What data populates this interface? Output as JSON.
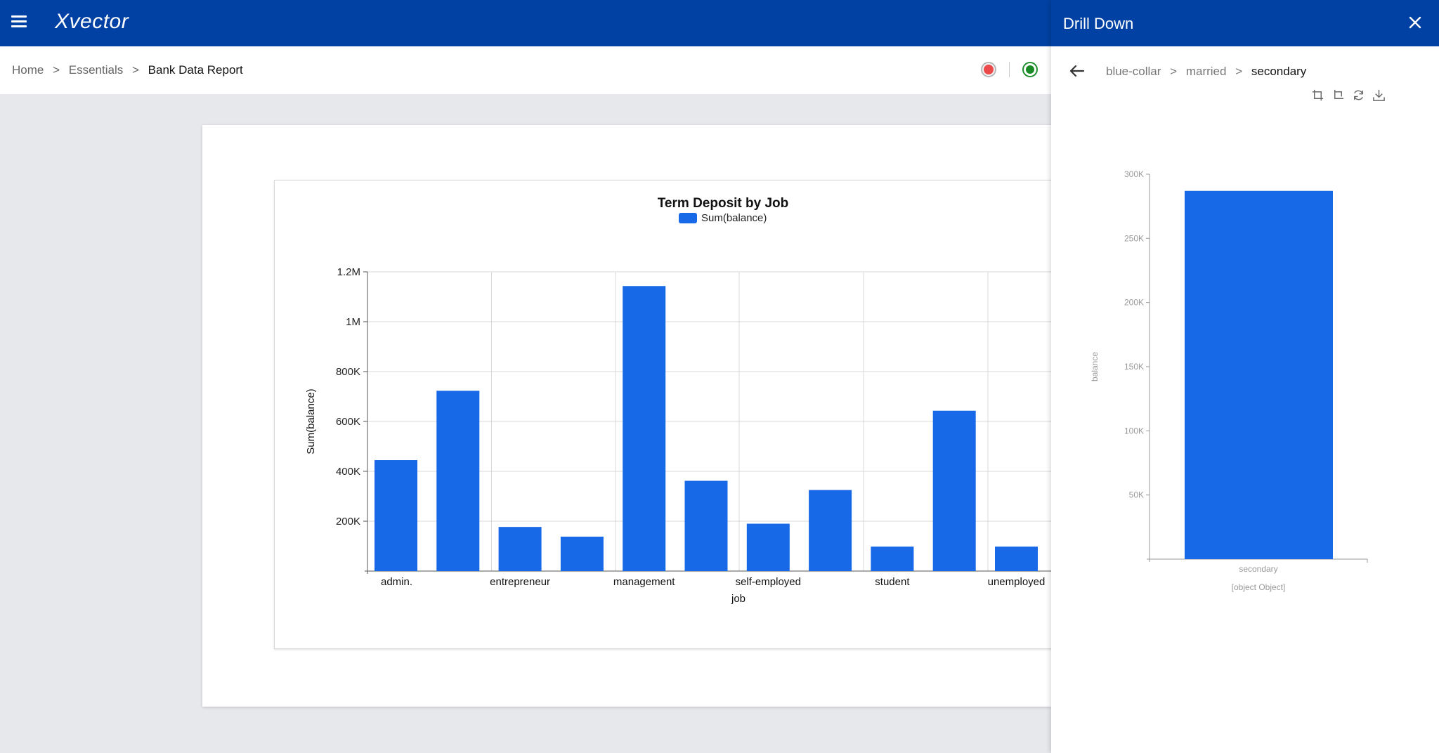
{
  "app": {
    "logo": "Xvector"
  },
  "breadcrumb": [
    "Home",
    "Essentials",
    "Bank Data Report"
  ],
  "breadcrumb_sep": ">",
  "colors": {
    "topbar": "#0041a3",
    "bar": "#1769e8",
    "stop": "#ea4a4a",
    "run": "#1a8a27"
  },
  "icons": {
    "menu": "hamburger-icon",
    "stop": "stop-circle-icon",
    "run": "running-status-icon",
    "close": "close-icon",
    "back": "arrow-left-icon"
  },
  "drawer": {
    "title": "Drill Down",
    "path": [
      "blue-collar",
      "married",
      "secondary"
    ],
    "tools": [
      "crop-icon",
      "crop-alt-icon",
      "refresh-icon",
      "download-icon"
    ]
  },
  "chart_data": [
    {
      "type": "bar",
      "title": "Term Deposit by Job",
      "legend": "Sum(balance)",
      "legend_position": "top-center",
      "xlabel": "job",
      "ylabel": "Sum(balance)",
      "x_tick_labels": [
        "admin.",
        "entrepreneur",
        "management",
        "self-employed",
        "student",
        "unemployed"
      ],
      "y_tick_labels": [
        "200K",
        "400K",
        "600K",
        "800K",
        "1M",
        "1.2M"
      ],
      "y_ticks": [
        200000,
        400000,
        600000,
        800000,
        1000000,
        1200000
      ],
      "ylim": [
        0,
        1200000
      ],
      "grid": true,
      "values": [
        445000,
        723000,
        177000,
        138000,
        1143000,
        362000,
        190000,
        325000,
        98000,
        643000,
        98000
      ]
    },
    {
      "type": "bar",
      "categories": [
        "secondary"
      ],
      "values": [
        287000
      ],
      "ylabel": "balance",
      "xlabel": "[object Object]",
      "y_tick_labels": [
        "50K",
        "100K",
        "150K",
        "200K",
        "250K",
        "300K"
      ],
      "y_ticks": [
        50000,
        100000,
        150000,
        200000,
        250000,
        300000
      ],
      "ylim": [
        0,
        300000
      ],
      "grid": false
    }
  ]
}
